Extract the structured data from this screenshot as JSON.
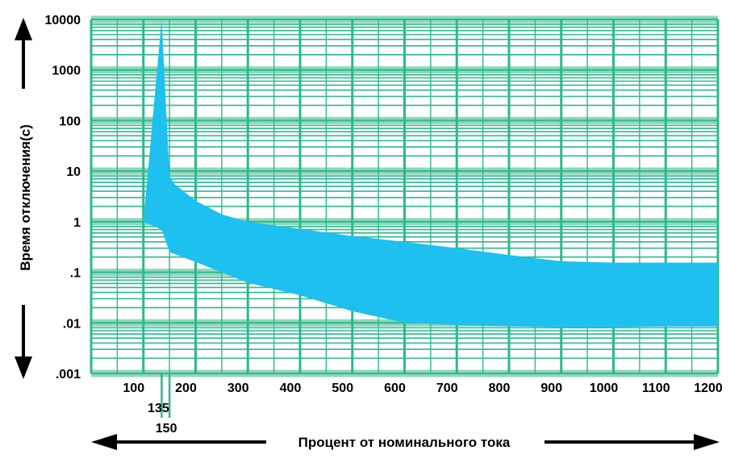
{
  "chart_data": {
    "type": "area",
    "xlabel": "Процент от номинального тока",
    "ylabel": "Время отключения(c)",
    "x_ticks": [
      "100",
      "200",
      "300",
      "400",
      "500",
      "600",
      "700",
      "800",
      "900",
      "1000",
      "1100",
      "1200"
    ],
    "x_ticks_extra": [
      "135",
      "150"
    ],
    "y_ticks": [
      "10000",
      "1000",
      "100",
      "10",
      "1",
      ".1",
      ".01",
      ".001"
    ],
    "xlim": [
      0,
      1200
    ],
    "ylim": [
      0.001,
      10000
    ],
    "y_scale": "log",
    "grid": true,
    "colors": {
      "band": "#1ec0ef",
      "grid": "#2db88e",
      "grid_minor": "#8fd8bb",
      "marker": "#2db88e"
    },
    "band_upper": {
      "x": [
        135,
        135,
        150,
        160,
        200,
        250,
        300,
        400,
        500,
        600,
        700,
        800,
        900,
        1000,
        1100,
        1200
      ],
      "y": [
        10000,
        10000,
        8,
        5.5,
        2.6,
        1.4,
        1.0,
        0.72,
        0.52,
        0.4,
        0.3,
        0.22,
        0.165,
        0.155,
        0.155,
        0.155
      ]
    },
    "band_lower": {
      "x": [
        100,
        135,
        150,
        200,
        300,
        400,
        500,
        600,
        700,
        800,
        900,
        1000,
        1100,
        1200
      ],
      "y": [
        1,
        0.7,
        0.25,
        0.16,
        0.062,
        0.035,
        0.017,
        0.01,
        0.009,
        0.0085,
        0.0082,
        0.0082,
        0.0085,
        0.0085
      ]
    }
  }
}
